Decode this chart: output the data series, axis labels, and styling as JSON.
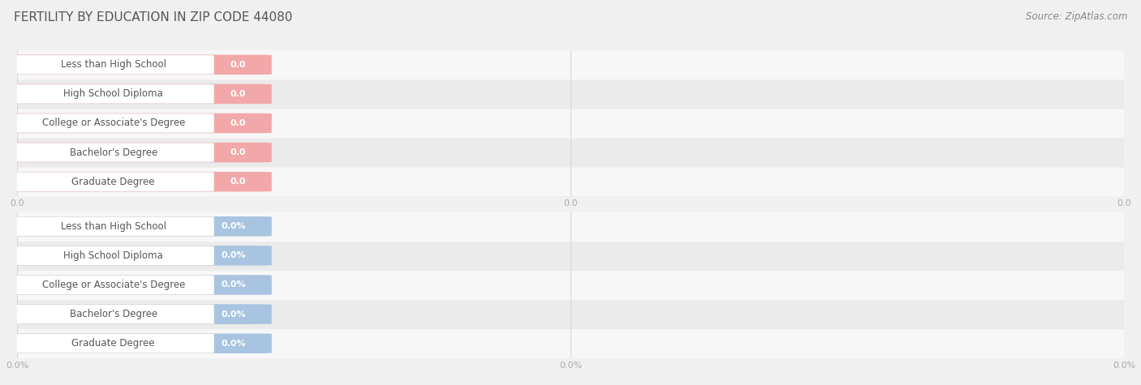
{
  "title": "FERTILITY BY EDUCATION IN ZIP CODE 44080",
  "source": "Source: ZipAtlas.com",
  "categories": [
    "Less than High School",
    "High School Diploma",
    "College or Associate's Degree",
    "Bachelor's Degree",
    "Graduate Degree"
  ],
  "values_top": [
    0.0,
    0.0,
    0.0,
    0.0,
    0.0
  ],
  "values_bottom": [
    0.0,
    0.0,
    0.0,
    0.0,
    0.0
  ],
  "bar_color_top": "#f2a8a8",
  "bar_color_bottom": "#a8c4e0",
  "value_label_top": [
    "0.0",
    "0.0",
    "0.0",
    "0.0",
    "0.0"
  ],
  "value_label_bottom": [
    "0.0%",
    "0.0%",
    "0.0%",
    "0.0%",
    "0.0%"
  ],
  "axis_tick_labels_top": [
    "0.0",
    "0.0",
    "0.0"
  ],
  "axis_tick_labels_bottom": [
    "0.0%",
    "0.0%",
    "0.0%"
  ],
  "background_color": "#f0f0f0",
  "row_bg_even": "#f7f7f7",
  "row_bg_odd": "#ebebeb",
  "grid_color": "#cccccc",
  "title_color": "#555555",
  "source_color": "#888888",
  "label_text_color": "#555555",
  "value_text_color": "#ffffff",
  "axis_tick_color": "#aaaaaa",
  "white_label_box": "#ffffff",
  "white_label_border": "#dddddd"
}
